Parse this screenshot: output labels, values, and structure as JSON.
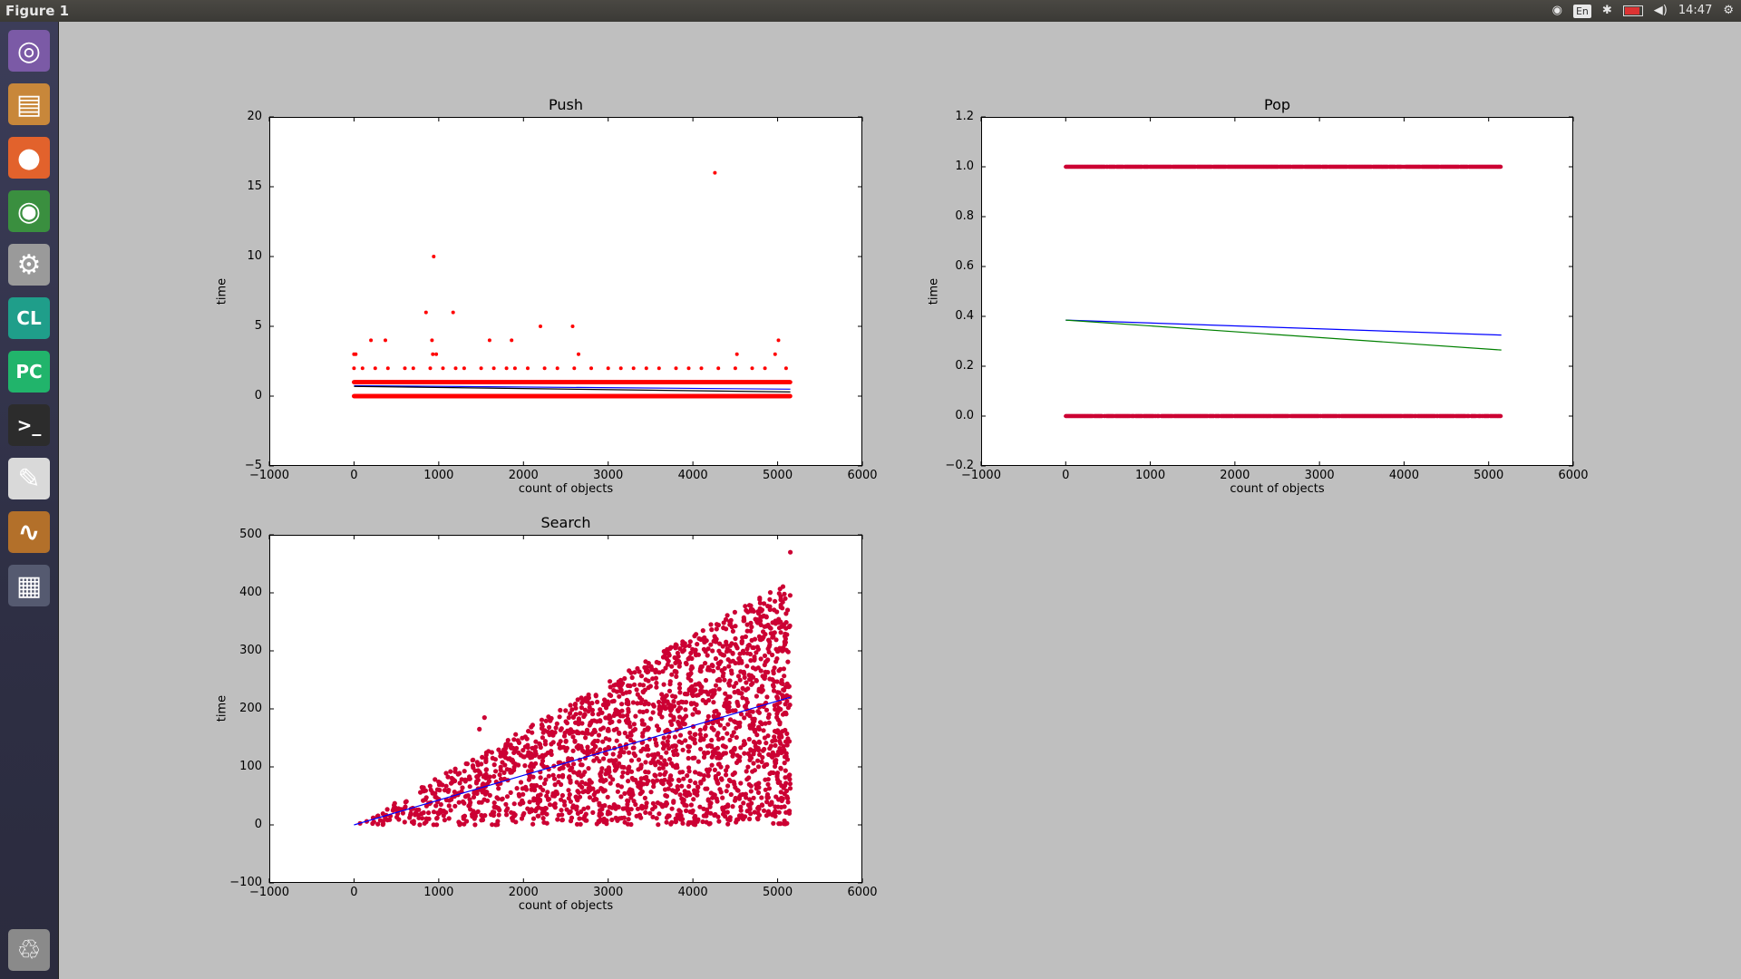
{
  "window": {
    "title": "Figure 1"
  },
  "panel": {
    "indicators": [
      {
        "name": "wifi-icon",
        "text": "◉"
      },
      {
        "name": "keyboard-layout",
        "text": "En"
      },
      {
        "name": "bluetooth-icon",
        "text": "✱"
      },
      {
        "name": "battery-icon",
        "text": ""
      },
      {
        "name": "volume-icon",
        "text": "◀)"
      },
      {
        "name": "clock",
        "text": "14:47"
      },
      {
        "name": "settings-gear-icon",
        "text": "⚙"
      }
    ]
  },
  "launcher": {
    "items": [
      {
        "name": "ubuntu-dash-icon",
        "glyph": "◎",
        "color": "#7b5aa6"
      },
      {
        "name": "files-icon",
        "glyph": "▤",
        "color": "#c8873a"
      },
      {
        "name": "firefox-icon",
        "glyph": "●",
        "color": "#e2622c"
      },
      {
        "name": "chrome-icon",
        "glyph": "◉",
        "color": "#3a8f3f"
      },
      {
        "name": "system-settings-icon",
        "glyph": "⚙",
        "color": "#9a9a9a"
      },
      {
        "name": "clion-icon",
        "glyph": "CL",
        "color": "#1f9e8a"
      },
      {
        "name": "pycharm-icon",
        "glyph": "PC",
        "color": "#21b46b"
      },
      {
        "name": "terminal-icon",
        "glyph": ">_",
        "color": "#2c2c2c"
      },
      {
        "name": "text-editor-icon",
        "glyph": "✎",
        "color": "#d9d9d9"
      },
      {
        "name": "figure-app-icon",
        "glyph": "∿",
        "color": "#b3702a"
      },
      {
        "name": "workspace-switcher-icon",
        "glyph": "▦",
        "color": "#555a70"
      },
      {
        "name": "trash-icon",
        "glyph": "♲",
        "color": "#8a8a8a"
      }
    ]
  },
  "colors": {
    "points": "#cc0033",
    "push_points": "#ff0000",
    "fit_blue": "#0000ff",
    "fit_green": "#008000",
    "fit_black": "#000000"
  },
  "chart_data": [
    {
      "type": "scatter",
      "title": "Push",
      "xlabel": "count of objects",
      "ylabel": "time",
      "xlim": [
        -1000,
        6000
      ],
      "ylim": [
        -5,
        20
      ],
      "xticks": [
        -1000,
        0,
        1000,
        2000,
        3000,
        4000,
        5000,
        6000
      ],
      "yticks": [
        -5,
        0,
        5,
        10,
        15,
        20
      ],
      "dense_bands": [
        {
          "y": 1,
          "x_from": 0,
          "x_to": 5150
        },
        {
          "y": 0,
          "x_from": 0,
          "x_to": 5150
        }
      ],
      "points": [
        {
          "x": 0,
          "y": 3
        },
        {
          "x": 20,
          "y": 3
        },
        {
          "x": 200,
          "y": 4
        },
        {
          "x": 370,
          "y": 4
        },
        {
          "x": 850,
          "y": 6
        },
        {
          "x": 920,
          "y": 4
        },
        {
          "x": 930,
          "y": 3
        },
        {
          "x": 970,
          "y": 3
        },
        {
          "x": 940,
          "y": 10
        },
        {
          "x": 1170,
          "y": 6
        },
        {
          "x": 1600,
          "y": 4
        },
        {
          "x": 1860,
          "y": 4
        },
        {
          "x": 2200,
          "y": 5
        },
        {
          "x": 2580,
          "y": 5
        },
        {
          "x": 2650,
          "y": 3
        },
        {
          "x": 4260,
          "y": 16
        },
        {
          "x": 4520,
          "y": 3
        },
        {
          "x": 4970,
          "y": 3
        },
        {
          "x": 5010,
          "y": 4
        },
        {
          "x": 0,
          "y": 2
        },
        {
          "x": 100,
          "y": 2
        },
        {
          "x": 250,
          "y": 2
        },
        {
          "x": 400,
          "y": 2
        },
        {
          "x": 600,
          "y": 2
        },
        {
          "x": 700,
          "y": 2
        },
        {
          "x": 900,
          "y": 2
        },
        {
          "x": 1050,
          "y": 2
        },
        {
          "x": 1200,
          "y": 2
        },
        {
          "x": 1300,
          "y": 2
        },
        {
          "x": 1500,
          "y": 2
        },
        {
          "x": 1650,
          "y": 2
        },
        {
          "x": 1800,
          "y": 2
        },
        {
          "x": 1900,
          "y": 2
        },
        {
          "x": 2050,
          "y": 2
        },
        {
          "x": 2250,
          "y": 2
        },
        {
          "x": 2400,
          "y": 2
        },
        {
          "x": 2600,
          "y": 2
        },
        {
          "x": 2800,
          "y": 2
        },
        {
          "x": 3000,
          "y": 2
        },
        {
          "x": 3150,
          "y": 2
        },
        {
          "x": 3300,
          "y": 2
        },
        {
          "x": 3450,
          "y": 2
        },
        {
          "x": 3600,
          "y": 2
        },
        {
          "x": 3800,
          "y": 2
        },
        {
          "x": 3950,
          "y": 2
        },
        {
          "x": 4100,
          "y": 2
        },
        {
          "x": 4300,
          "y": 2
        },
        {
          "x": 4500,
          "y": 2
        },
        {
          "x": 4700,
          "y": 2
        },
        {
          "x": 4850,
          "y": 2
        },
        {
          "x": 5100,
          "y": 2
        }
      ],
      "fit_lines": [
        {
          "color": "#0000ff",
          "x": [
            0,
            5150
          ],
          "y": [
            0.75,
            0.5
          ]
        },
        {
          "color": "#000000",
          "x": [
            0,
            5150
          ],
          "y": [
            0.7,
            0.3
          ]
        }
      ]
    },
    {
      "type": "scatter",
      "title": "Pop",
      "xlabel": "count of objects",
      "ylabel": "time",
      "xlim": [
        -1000,
        6000
      ],
      "ylim": [
        -0.2,
        1.2
      ],
      "xticks": [
        -1000,
        0,
        1000,
        2000,
        3000,
        4000,
        5000,
        6000
      ],
      "ytick_labels": [
        "−0.2",
        "0.0",
        "0.2",
        "0.4",
        "0.6",
        "0.8",
        "1.0",
        "1.2"
      ],
      "yticks": [
        -0.2,
        0.0,
        0.2,
        0.4,
        0.6,
        0.8,
        1.0,
        1.2
      ],
      "dense_bands": [
        {
          "y": 1,
          "x_from": 0,
          "x_to": 5150
        },
        {
          "y": 0,
          "x_from": 0,
          "x_to": 5150
        }
      ],
      "fit_lines": [
        {
          "color": "#0000ff",
          "x": [
            0,
            5150
          ],
          "y": [
            0.385,
            0.325
          ]
        },
        {
          "color": "#008000",
          "x": [
            0,
            5150
          ],
          "y": [
            0.385,
            0.265
          ]
        }
      ]
    },
    {
      "type": "scatter",
      "title": "Search",
      "xlabel": "count of objects",
      "ylabel": "time",
      "xlim": [
        -1000,
        6000
      ],
      "ylim": [
        -100,
        500
      ],
      "xticks": [
        -1000,
        0,
        1000,
        2000,
        3000,
        4000,
        5000,
        6000
      ],
      "yticks": [
        -100,
        0,
        100,
        200,
        300,
        400,
        500
      ],
      "cloud": {
        "x_from": 0,
        "x_to": 5150,
        "y_min": 0,
        "y_max_slope": 0.082,
        "count": 2200
      },
      "outliers": [
        {
          "x": 5150,
          "y": 470
        },
        {
          "x": 1540,
          "y": 185
        },
        {
          "x": 1480,
          "y": 165
        }
      ],
      "fit_lines": [
        {
          "color": "#0000ff",
          "x": [
            0,
            5150
          ],
          "y": [
            0,
            220
          ]
        }
      ]
    }
  ]
}
